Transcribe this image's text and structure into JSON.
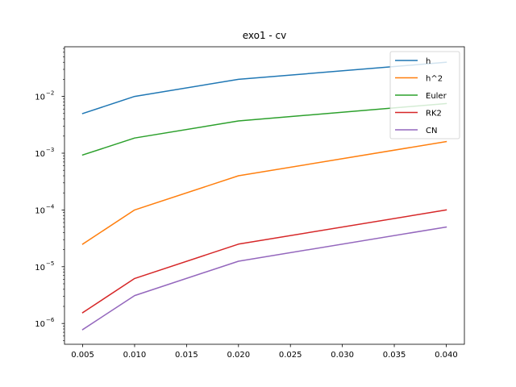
{
  "chart_data": {
    "type": "line",
    "title": "exo1 - cv",
    "xlabel": "",
    "ylabel": "",
    "x": [
      0.005,
      0.01,
      0.02,
      0.04
    ],
    "xlim": [
      0.00325,
      0.04175
    ],
    "ylim": [
      4.3e-07,
      0.075
    ],
    "yscale": "log",
    "x_ticks": [
      0.005,
      0.01,
      0.015,
      0.02,
      0.025,
      0.03,
      0.035,
      0.04
    ],
    "x_tick_labels": [
      "0.005",
      "0.010",
      "0.015",
      "0.020",
      "0.025",
      "0.030",
      "0.035",
      "0.040"
    ],
    "y_tick_exponents": [
      -6,
      -5,
      -4,
      -3,
      -2
    ],
    "y_tick_labels": [
      "10",
      "10",
      "10",
      "10",
      "10"
    ],
    "y_tick_exponent_labels": [
      "−6",
      "−5",
      "−4",
      "−3",
      "−2"
    ],
    "grid": false,
    "legend_position": "upper right",
    "series": [
      {
        "name": "h",
        "color": "#1f77b4",
        "values": [
          0.005,
          0.01,
          0.02,
          0.04
        ]
      },
      {
        "name": "h^2",
        "color": "#ff7f0e",
        "values": [
          2.5e-05,
          0.0001,
          0.0004,
          0.0016
        ]
      },
      {
        "name": "Euler",
        "color": "#2ca02c",
        "values": [
          0.00093,
          0.00185,
          0.0037,
          0.0075
        ]
      },
      {
        "name": "RK2",
        "color": "#d62728",
        "values": [
          1.55e-06,
          6.2e-06,
          2.5e-05,
          0.0001
        ]
      },
      {
        "name": "CN",
        "color": "#9467bd",
        "values": [
          7.8e-07,
          3.1e-06,
          1.25e-05,
          5e-05
        ]
      }
    ]
  }
}
